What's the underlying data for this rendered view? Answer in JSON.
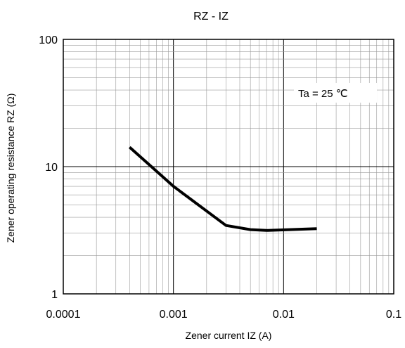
{
  "chart_data": {
    "type": "line",
    "title": "RZ - IZ",
    "xlabel": "Zener current IZ (A)",
    "ylabel": "Zener operating resistance RZ (Ω)",
    "x_scale": "log",
    "y_scale": "log",
    "xlim": [
      0.0001,
      0.1
    ],
    "ylim": [
      1,
      100
    ],
    "x_tick_labels": [
      "0.0001",
      "0.001",
      "0.01",
      "0.1"
    ],
    "y_tick_labels": [
      "1",
      "10",
      "100"
    ],
    "grid": true,
    "annotation": "Ta = 25 ℃",
    "series": [
      {
        "x": [
          0.0004,
          0.001,
          0.003,
          0.005,
          0.007,
          0.02
        ],
        "y": [
          14.2,
          7.0,
          3.45,
          3.2,
          3.15,
          3.25
        ]
      }
    ]
  }
}
